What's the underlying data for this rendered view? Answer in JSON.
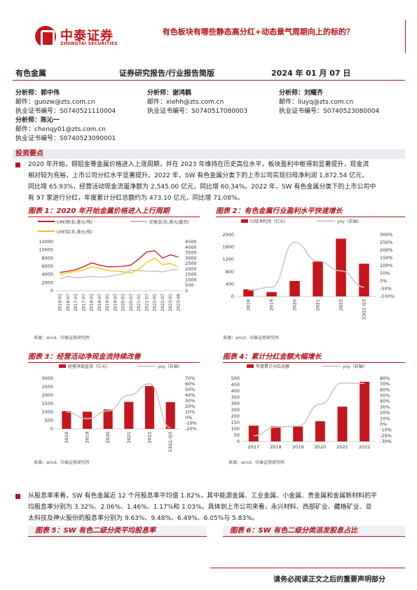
{
  "header": {
    "logo_cn": "中泰证券",
    "logo_en": "ZHONGTAI SECURITIES",
    "title": "有色板块有哪些静态高分红+动态景气周期向上的标的？"
  },
  "meta": {
    "industry": "有色金属",
    "report_type": "证券研究报告/行业报告简版",
    "date": "2024 年 01 月 07 日"
  },
  "analysts": [
    {
      "name_label": "分析师：",
      "name": "郭中伟",
      "email_label": "邮件：",
      "email": "guozw@zts.com.cn",
      "cert_label": "执业证书编号：",
      "cert": "S0740521110004"
    },
    {
      "name_label": "分析师：",
      "name": "谢鸿鹤",
      "email_label": "邮件：",
      "email": "xiehh@zts.com.cn",
      "cert_label": "执业证书编号：",
      "cert": "S0740517080003"
    },
    {
      "name_label": "分析师：",
      "name": "刘耀齐",
      "email_label": "邮件：",
      "email": "liuyq@zts.com.cn",
      "cert_label": "执业证书编号：",
      "cert": "S0740523080004"
    },
    {
      "name_label": "分析师：",
      "name": "陈沁一",
      "email_label": "邮件：",
      "email": "chenqy01@zts.com.cn",
      "cert_label": "执业证书编号：",
      "cert": "S0740523090001"
    }
  ],
  "section_title": "投资要点",
  "para1": [
    "2020 年开始，铜铝金等金属价格进入上涨周期，并在 2023 年维持在历史高位水平，板块盈利中枢得到显著提升，现金流",
    "相对较为充裕，上市公司分红水平显著提升。2022 年，SW 有色金属分类下的上市公司实现归母净利润 1,872.54 亿元，",
    "同比增 65.93%，经营活动现金流量净额为 2,545.00 亿元，同比增 60.34%。2022 年，SW 有色金属分类下的上市公司中",
    "有 97 家进行分红，年度累计分红总额约为 473.10 亿元，同比增 71.08%。"
  ],
  "para2": [
    "从股息率来看，SW 有色金属近 12 个月股息率平均值 1.82%，其中能源金属、工业金属、小金属、贵金属和金属新材料的平",
    "均股息率分别为 3.32%、2.06%、1.46%、1.17%和 1.03%。具体到上市公司来看，永兴材料、西部矿业、藏格矿业、亚",
    "太科技及神火股份的股息率分别为 9.63%、9.48%、6.49%、6.05%与 5.83%。"
  ],
  "figures": {
    "fig1": {
      "title": "图表 1：2020 年开始金属价格进入上行周期",
      "source": "来源：wind、中泰证券研究所"
    },
    "fig2": {
      "title": "图表 2：有色金属行业盈利水平快速增长",
      "source": "来源：wind、中泰证券研究所"
    },
    "fig3": {
      "title": "图表 3：经营活动净现金流持续改善",
      "source": "来源：wind、中泰证券研究所"
    },
    "fig4": {
      "title": "图表 4：累计分红金额大幅增长",
      "source": "来源：wind、中泰证券研究所"
    },
    "fig5": {
      "title": "图表 5：SW 有色二级分类平均股息率"
    },
    "fig6": {
      "title": "图表 6：SW 有色二级分类派发股息占比"
    }
  },
  "chart_data": [
    {
      "type": "line",
      "legend": [
        "LME铜(右,美元/吨)",
        "伦敦金(右,美元/盎司)",
        "LME铝(右,美元/吨)"
      ],
      "x_ticks": [
        "2016-01",
        "2016-07",
        "2017-01",
        "2017-07",
        "2018-01",
        "2018-07",
        "2019-01",
        "2019-07",
        "2020-01",
        "2020-07",
        "2021-01",
        "2021-07",
        "2022-01",
        "2022-07",
        "2023-01",
        "2023-08"
      ],
      "yleft_ticks": [
        "0",
        "2000",
        "4000",
        "6000",
        "8000",
        "10000",
        "12000"
      ],
      "yright_ticks": [
        "0",
        "500",
        "1000",
        "1500",
        "2000",
        "2500",
        "3000",
        "3500",
        "4000",
        "4500"
      ],
      "ylim_left": [
        0,
        12000
      ],
      "ylim_right": [
        0,
        4500
      ],
      "series": [
        {
          "name": "LME铜(右,美元/吨)",
          "axis": "left",
          "color": "#c4161c",
          "values": [
            4500,
            4800,
            5200,
            5900,
            6800,
            6300,
            5900,
            5900,
            6000,
            6300,
            7800,
            9500,
            9800,
            8000,
            8800,
            8300
          ]
        },
        {
          "name": "伦敦金(右,美元/盎司)",
          "axis": "right",
          "color": "#bdbdbd",
          "values": [
            1100,
            1330,
            1200,
            1240,
            1330,
            1250,
            1290,
            1420,
            1560,
            1900,
            1850,
            1800,
            1800,
            1730,
            1900,
            1950
          ]
        },
        {
          "name": "LME铝(右,美元/吨)",
          "axis": "right",
          "color": "#f5c400",
          "values": [
            1500,
            1650,
            1800,
            1900,
            2200,
            2050,
            1850,
            1800,
            1750,
            1650,
            2000,
            2600,
            3000,
            2400,
            2500,
            2200
          ]
        }
      ]
    },
    {
      "type": "bar",
      "legend": [
        "归母净利润（亿元）",
        "yoy（右轴）"
      ],
      "categories": [
        "2018",
        "2019",
        "2020",
        "2021",
        "2022",
        "23Q1-Q3"
      ],
      "yleft_ticks": [
        "0",
        "400",
        "800",
        "1200",
        "1600",
        "2000"
      ],
      "yright_ticks": [
        "-100%",
        "-50%",
        "0%",
        "50%",
        "100%",
        "150%",
        "200%",
        "250%",
        "300%"
      ],
      "ylim_left": [
        0,
        2000
      ],
      "ylim_right": [
        -100,
        300
      ],
      "bars": [
        230,
        140,
        500,
        1130,
        1872.54,
        1060
      ],
      "yoy": [
        -60,
        -40,
        250,
        130,
        65.93,
        -40
      ]
    },
    {
      "type": "bar",
      "legend": [
        "经营净现金流（亿元）",
        "yoy（右轴）"
      ],
      "categories": [
        "2018",
        "2019",
        "2020",
        "2021",
        "2022",
        "23Q1-Q3"
      ],
      "yleft_ticks": [
        "0",
        "500",
        "1000",
        "1500",
        "2000",
        "2500",
        "3000"
      ],
      "yright_ticks": [
        "-20%",
        "-10%",
        "0%",
        "10%",
        "20%",
        "30%",
        "40%",
        "50%",
        "60%",
        "70%"
      ],
      "ylim_left": [
        0,
        3000
      ],
      "ylim_right": [
        -20,
        70
      ],
      "bars": [
        1050,
        1020,
        1150,
        1600,
        2545.0,
        1590
      ],
      "yoy": [
        10,
        -2,
        12,
        40,
        60.34,
        -18
      ]
    },
    {
      "type": "bar",
      "legend": [
        "年度累计分红总额",
        "yoy（右轴）"
      ],
      "categories": [
        "2017",
        "2018",
        "2019",
        "2020",
        "2021",
        "2022"
      ],
      "yleft_ticks": [
        "0",
        "50",
        "100",
        "150",
        "200",
        "250",
        "300",
        "350",
        "400",
        "450",
        "500"
      ],
      "yright_ticks": [
        "-30%",
        "-20%",
        "-10%",
        "0%",
        "10%",
        "20%",
        "30%",
        "40%",
        "50%",
        "60%",
        "70%",
        "80%"
      ],
      "ylim_left": [
        0,
        500
      ],
      "ylim_right": [
        -30,
        80
      ],
      "bars": [
        125,
        120,
        118,
        160,
        276,
        473.1
      ],
      "yoy": [
        -20,
        -5,
        -3,
        35,
        72,
        71.08
      ]
    }
  ],
  "footer": "请务必阅读正文之后的重要声明部分"
}
